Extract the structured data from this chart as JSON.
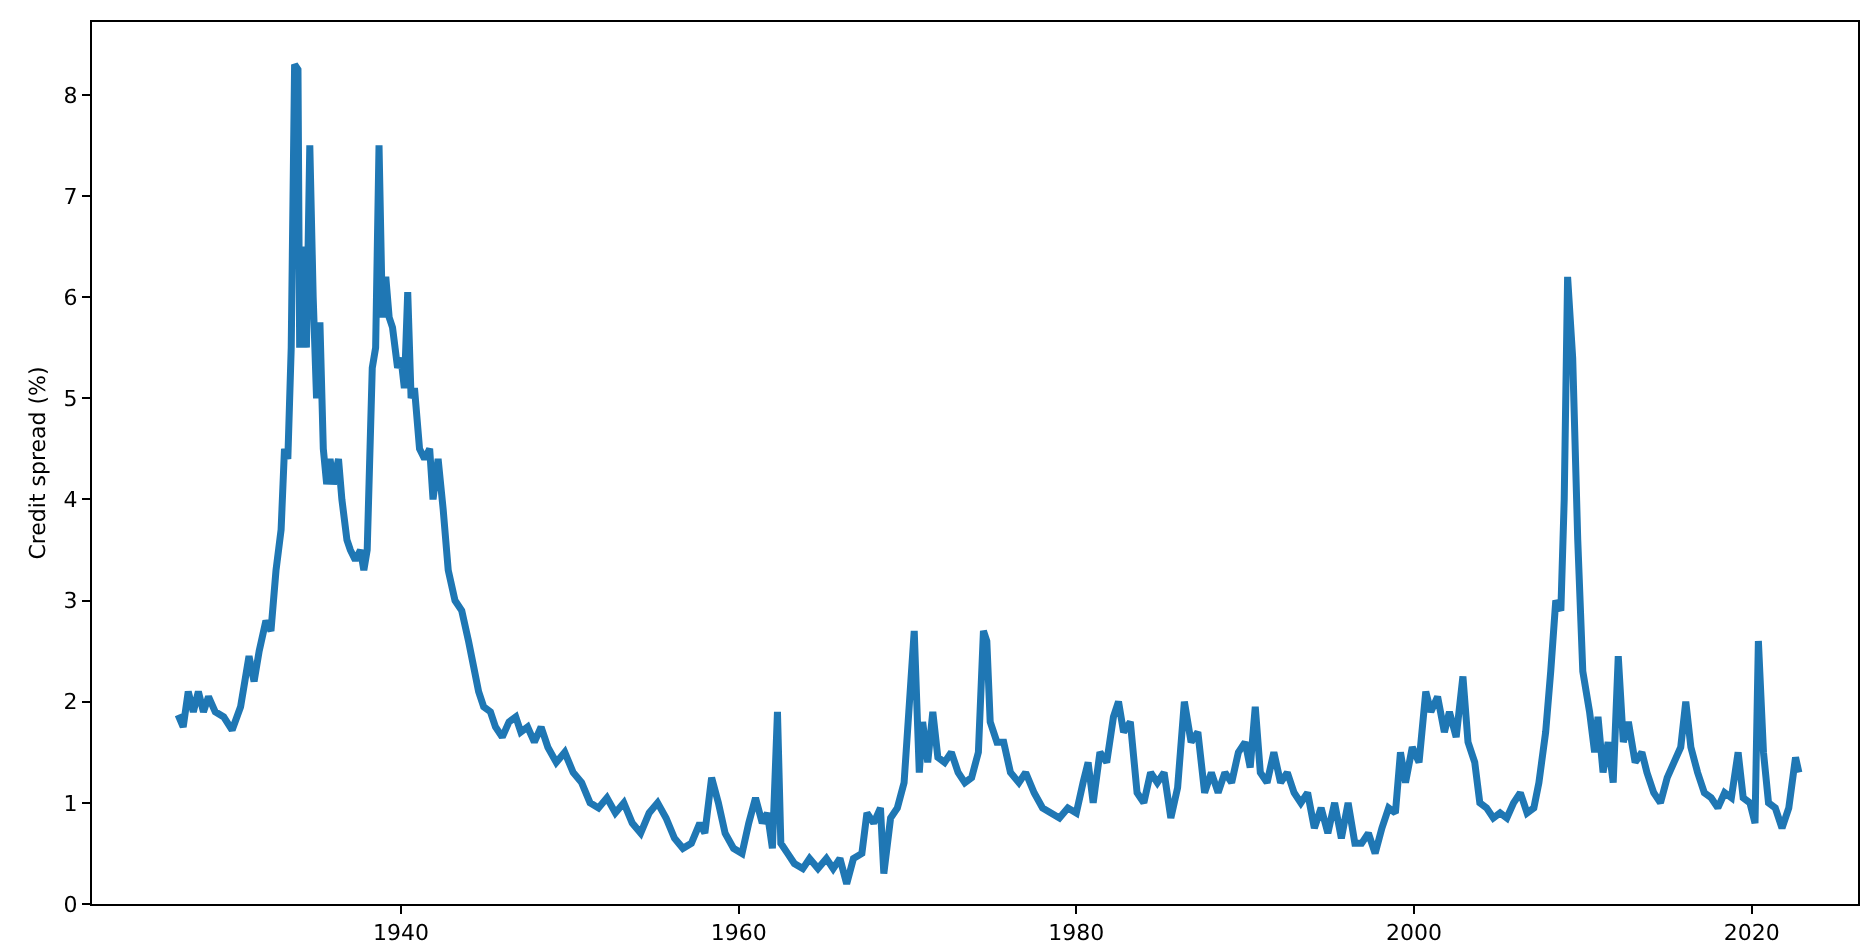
{
  "chart_data": {
    "type": "line",
    "ylabel": "Credit spread (%)",
    "xlim": [
      1921.7,
      2026.3
    ],
    "xticks": [
      1940,
      1960,
      1980,
      2000,
      2020
    ],
    "ylim": [
      0,
      8.72
    ],
    "yticks": [
      0,
      1,
      2,
      3,
      4,
      5,
      6,
      7,
      8
    ],
    "grid": false,
    "marker": "none",
    "line_style": "solid",
    "series": [
      {
        "color": "#1f77b4",
        "x": [
          1926.8,
          1927.1,
          1927.4,
          1927.7,
          1928.0,
          1928.3,
          1928.6,
          1929.0,
          1929.5,
          1930.0,
          1930.5,
          1931.0,
          1931.3,
          1931.6,
          1932.0,
          1932.3,
          1932.6,
          1932.9,
          1933.1,
          1933.3,
          1933.5,
          1933.7,
          1933.9,
          1934.0,
          1934.2,
          1934.4,
          1934.6,
          1934.8,
          1935.0,
          1935.2,
          1935.4,
          1935.6,
          1935.8,
          1936.0,
          1936.3,
          1936.5,
          1936.8,
          1937.0,
          1937.3,
          1937.6,
          1937.8,
          1938.0,
          1938.3,
          1938.5,
          1938.7,
          1938.9,
          1939.1,
          1939.3,
          1939.5,
          1939.8,
          1940.0,
          1940.2,
          1940.4,
          1940.6,
          1940.8,
          1941.1,
          1941.4,
          1941.7,
          1941.9,
          1942.2,
          1942.5,
          1942.8,
          1943.2,
          1943.6,
          1944.0,
          1944.3,
          1944.6,
          1944.9,
          1945.3,
          1945.6,
          1946.0,
          1946.4,
          1946.8,
          1947.1,
          1947.5,
          1947.9,
          1948.3,
          1948.7,
          1949.2,
          1949.7,
          1950.2,
          1950.7,
          1951.2,
          1951.7,
          1952.2,
          1952.7,
          1953.2,
          1953.7,
          1954.2,
          1954.7,
          1955.2,
          1955.7,
          1956.2,
          1956.7,
          1957.2,
          1957.7,
          1958.0,
          1958.4,
          1958.8,
          1959.2,
          1959.7,
          1960.2,
          1960.6,
          1961.0,
          1961.4,
          1961.7,
          1962.0,
          1962.3,
          1962.5,
          1962.9,
          1963.3,
          1963.8,
          1964.2,
          1964.7,
          1965.2,
          1965.6,
          1966.0,
          1966.4,
          1966.8,
          1967.3,
          1967.6,
          1968.0,
          1968.4,
          1968.6,
          1969.0,
          1969.4,
          1969.8,
          1970.2,
          1970.4,
          1970.7,
          1970.9,
          1971.2,
          1971.5,
          1971.8,
          1972.2,
          1972.6,
          1973.0,
          1973.4,
          1973.8,
          1974.2,
          1974.5,
          1974.7,
          1974.9,
          1975.3,
          1975.7,
          1976.1,
          1976.6,
          1977.0,
          1977.5,
          1978.0,
          1978.5,
          1979.0,
          1979.5,
          1980.0,
          1980.4,
          1980.7,
          1981.0,
          1981.4,
          1981.8,
          1982.2,
          1982.5,
          1982.8,
          1983.2,
          1983.6,
          1984.0,
          1984.4,
          1984.8,
          1985.2,
          1985.6,
          1986.0,
          1986.4,
          1986.8,
          1987.2,
          1987.6,
          1988.0,
          1988.4,
          1988.8,
          1989.2,
          1989.6,
          1990.0,
          1990.3,
          1990.6,
          1990.9,
          1991.3,
          1991.7,
          1992.1,
          1992.5,
          1992.9,
          1993.3,
          1993.7,
          1994.1,
          1994.5,
          1994.9,
          1995.3,
          1995.7,
          1996.1,
          1996.5,
          1996.9,
          1997.3,
          1997.7,
          1998.1,
          1998.5,
          1998.9,
          1999.2,
          1999.5,
          1999.9,
          2000.3,
          2000.7,
          2001.0,
          2001.4,
          2001.8,
          2002.1,
          2002.5,
          2002.9,
          2003.2,
          2003.6,
          2003.9,
          2004.3,
          2004.7,
          2005.1,
          2005.5,
          2005.9,
          2006.3,
          2006.7,
          2007.1,
          2007.4,
          2007.8,
          2008.1,
          2008.4,
          2008.7,
          2008.9,
          2009.1,
          2009.4,
          2009.7,
          2010.0,
          2010.4,
          2010.7,
          2010.9,
          2011.2,
          2011.5,
          2011.8,
          2012.1,
          2012.4,
          2012.7,
          2013.1,
          2013.5,
          2013.8,
          2014.2,
          2014.6,
          2015.0,
          2015.4,
          2015.8,
          2016.1,
          2016.4,
          2016.8,
          2017.2,
          2017.6,
          2018.0,
          2018.4,
          2018.8,
          2019.2,
          2019.5,
          2019.9,
          2020.2,
          2020.4,
          2020.7,
          2021.0,
          2021.4,
          2021.8,
          2022.2,
          2022.6,
          2022.8
        ],
        "values": [
          1.87,
          1.75,
          2.1,
          1.9,
          2.1,
          1.9,
          2.05,
          1.9,
          1.85,
          1.72,
          1.95,
          2.45,
          2.2,
          2.5,
          2.8,
          2.7,
          3.3,
          3.7,
          4.5,
          4.4,
          5.5,
          8.3,
          8.25,
          5.5,
          6.5,
          5.5,
          7.5,
          6.0,
          5.0,
          5.75,
          4.5,
          4.15,
          4.4,
          4.15,
          4.4,
          4.0,
          3.6,
          3.5,
          3.4,
          3.5,
          3.3,
          3.5,
          5.3,
          5.5,
          7.5,
          5.8,
          6.2,
          5.8,
          5.7,
          5.3,
          5.4,
          5.1,
          6.05,
          5.0,
          5.1,
          4.5,
          4.4,
          4.5,
          4.0,
          4.4,
          3.9,
          3.3,
          3.0,
          2.9,
          2.6,
          2.35,
          2.1,
          1.95,
          1.9,
          1.75,
          1.65,
          1.8,
          1.85,
          1.7,
          1.75,
          1.6,
          1.75,
          1.55,
          1.4,
          1.5,
          1.3,
          1.2,
          1.0,
          0.95,
          1.05,
          0.9,
          1.0,
          0.8,
          0.7,
          0.9,
          1.0,
          0.85,
          0.65,
          0.55,
          0.6,
          0.8,
          0.7,
          1.25,
          1.0,
          0.7,
          0.55,
          0.5,
          0.8,
          1.05,
          0.8,
          0.9,
          0.55,
          1.9,
          0.6,
          0.5,
          0.4,
          0.35,
          0.45,
          0.35,
          0.45,
          0.35,
          0.45,
          0.2,
          0.45,
          0.5,
          0.9,
          0.8,
          0.95,
          0.3,
          0.85,
          0.95,
          1.2,
          2.2,
          2.7,
          1.3,
          1.8,
          1.4,
          1.9,
          1.45,
          1.4,
          1.5,
          1.3,
          1.2,
          1.25,
          1.5,
          2.7,
          2.6,
          1.8,
          1.6,
          1.6,
          1.3,
          1.2,
          1.3,
          1.1,
          0.95,
          0.9,
          0.85,
          0.95,
          0.9,
          1.2,
          1.4,
          1.0,
          1.5,
          1.4,
          1.85,
          2.0,
          1.7,
          1.8,
          1.1,
          1.0,
          1.3,
          1.2,
          1.3,
          0.85,
          1.15,
          2.0,
          1.6,
          1.7,
          1.1,
          1.3,
          1.1,
          1.3,
          1.2,
          1.5,
          1.6,
          1.35,
          1.95,
          1.3,
          1.2,
          1.5,
          1.2,
          1.3,
          1.1,
          1.0,
          1.1,
          0.75,
          0.95,
          0.7,
          1.0,
          0.65,
          1.0,
          0.6,
          0.6,
          0.7,
          0.5,
          0.75,
          0.95,
          0.9,
          1.5,
          1.2,
          1.55,
          1.4,
          2.1,
          1.9,
          2.05,
          1.7,
          1.9,
          1.65,
          2.25,
          1.6,
          1.4,
          1.0,
          0.95,
          0.85,
          0.9,
          0.85,
          1.0,
          1.1,
          0.9,
          0.95,
          1.2,
          1.7,
          2.3,
          3.0,
          2.9,
          4.0,
          6.2,
          5.4,
          3.6,
          2.3,
          1.9,
          1.5,
          1.85,
          1.3,
          1.6,
          1.2,
          2.45,
          1.6,
          1.8,
          1.4,
          1.5,
          1.3,
          1.1,
          1.0,
          1.25,
          1.4,
          1.55,
          2.0,
          1.55,
          1.3,
          1.1,
          1.05,
          0.95,
          1.1,
          1.05,
          1.5,
          1.05,
          1.0,
          0.8,
          2.6,
          1.5,
          1.0,
          0.95,
          0.75,
          0.95,
          1.45,
          1.3
        ]
      }
    ]
  }
}
